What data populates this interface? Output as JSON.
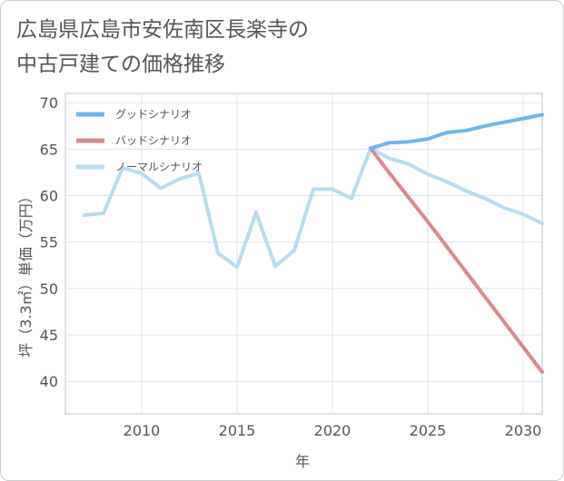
{
  "title_lines": [
    "広島県広島市安佐南区長楽寺の",
    "中古戸建ての価格推移"
  ],
  "chart_data": {
    "type": "line",
    "xlabel": "年",
    "ylabel": "坪（3.3㎡）単価（万円）",
    "xlim": [
      2006,
      2031
    ],
    "ylim": [
      36.5,
      71
    ],
    "xticks": [
      2010,
      2015,
      2020,
      2025,
      2030
    ],
    "yticks": [
      40,
      45,
      50,
      55,
      60,
      65,
      70
    ],
    "grid": true,
    "legend_position": "top-left",
    "series": [
      {
        "name": "グッドシナリオ",
        "color": "#6cb8ec",
        "x": [
          2022,
          2023,
          2024,
          2025,
          2026,
          2027,
          2028,
          2029,
          2030,
          2031
        ],
        "y": [
          65.1,
          65.7,
          65.8,
          66.1,
          66.8,
          67.0,
          67.5,
          67.9,
          68.3,
          68.7
        ]
      },
      {
        "name": "バッドシナリオ",
        "color": "#d98a8f",
        "x": [
          2022,
          2023,
          2024,
          2025,
          2026,
          2027,
          2028,
          2029,
          2030,
          2031
        ],
        "y": [
          65.1,
          62.4,
          59.8,
          57.2,
          54.5,
          51.8,
          49.1,
          46.4,
          43.7,
          41.0
        ]
      },
      {
        "name": "ノーマルシナリオ",
        "color": "#b7dcee",
        "x": [
          2007,
          2008,
          2009,
          2010,
          2011,
          2012,
          2013,
          2014,
          2015,
          2016,
          2017,
          2018,
          2019,
          2020,
          2021,
          2022,
          2023,
          2024,
          2025,
          2026,
          2027,
          2028,
          2029,
          2030,
          2031
        ],
        "y": [
          57.9,
          58.1,
          63.0,
          62.4,
          60.8,
          61.8,
          62.4,
          53.8,
          52.3,
          58.2,
          52.4,
          54.1,
          60.7,
          60.7,
          59.7,
          65.1,
          64.0,
          63.4,
          62.3,
          61.5,
          60.5,
          59.7,
          58.7,
          58.0,
          57.0
        ]
      }
    ]
  }
}
